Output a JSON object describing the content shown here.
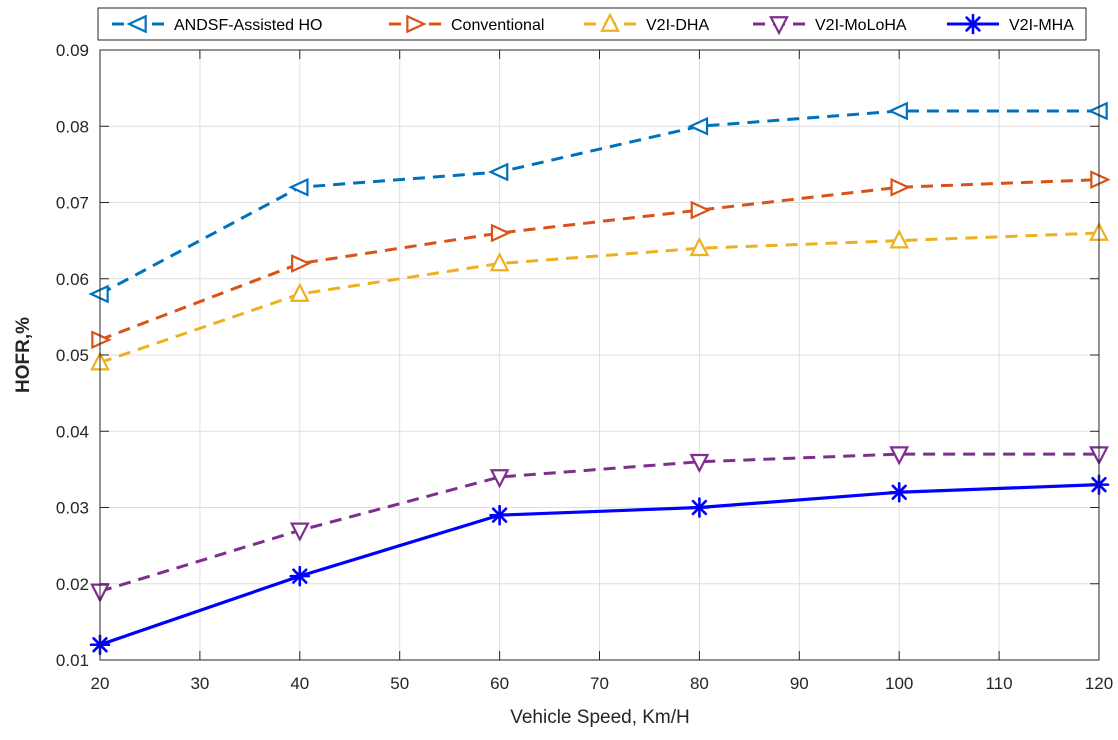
{
  "chart_data": {
    "type": "line",
    "title": "",
    "xlabel": "Vehicle Speed, Km/H",
    "ylabel": "HOFR,%",
    "xlim": [
      20,
      120
    ],
    "ylim": [
      0.01,
      0.09
    ],
    "xticks": [
      20,
      30,
      40,
      50,
      60,
      70,
      80,
      90,
      100,
      110,
      120
    ],
    "yticks": [
      0.01,
      0.02,
      0.03,
      0.04,
      0.05,
      0.06,
      0.07,
      0.08,
      0.09
    ],
    "xtick_labels": [
      "20",
      "30",
      "40",
      "50",
      "60",
      "70",
      "80",
      "90",
      "100",
      "110",
      "120"
    ],
    "ytick_labels": [
      "0.01",
      "0.02",
      "0.03",
      "0.04",
      "0.05",
      "0.06",
      "0.07",
      "0.08",
      "0.09"
    ],
    "grid": true,
    "legend_position": "top",
    "x": [
      20,
      40,
      60,
      80,
      100,
      120
    ],
    "series": [
      {
        "name": "ANDSF-Assisted HO",
        "values": [
          0.058,
          0.072,
          0.074,
          0.08,
          0.082,
          0.082
        ],
        "color": "#0072BD",
        "line_style": "dashed",
        "marker": "triangle-left"
      },
      {
        "name": "Conventional",
        "values": [
          0.052,
          0.062,
          0.066,
          0.069,
          0.072,
          0.073
        ],
        "color": "#D95319",
        "line_style": "dashed",
        "marker": "triangle-right"
      },
      {
        "name": "V2I-DHA",
        "values": [
          0.049,
          0.058,
          0.062,
          0.064,
          0.065,
          0.066
        ],
        "color": "#EDB120",
        "line_style": "dashed",
        "marker": "triangle-up"
      },
      {
        "name": "V2I-MoLoHA",
        "values": [
          0.019,
          0.027,
          0.034,
          0.036,
          0.037,
          0.037
        ],
        "color": "#7E2F8E",
        "line_style": "dashed",
        "marker": "triangle-down"
      },
      {
        "name": "V2I-MHA",
        "values": [
          0.012,
          0.021,
          0.029,
          0.03,
          0.032,
          0.033
        ],
        "color": "#0000FF",
        "line_style": "solid",
        "marker": "asterisk"
      }
    ]
  }
}
